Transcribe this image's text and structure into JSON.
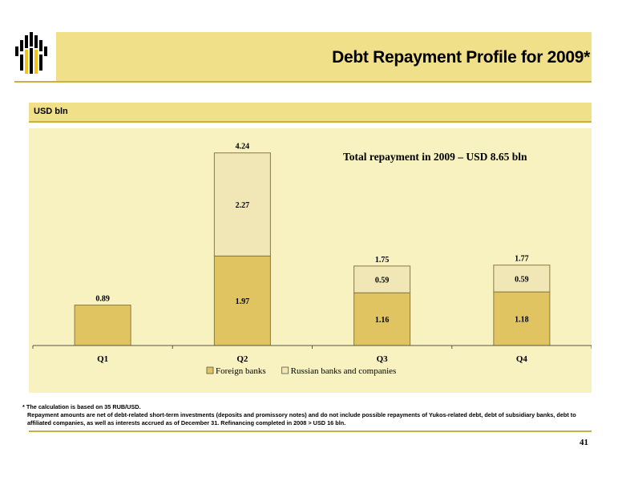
{
  "header": {
    "title": "Debt Repayment Profile for 2009*",
    "unit_label": "USD bln"
  },
  "colors": {
    "band": "#f0e08a",
    "panel": "#f7f2c0",
    "foreign": "#e0c462",
    "russian": "#f0e6b6",
    "logo_yellow": "#f2c21a"
  },
  "chart_data": {
    "type": "bar",
    "stacked": true,
    "title": "Total repayment in 2009 – USD 8.65 bln",
    "categories": [
      "Q1",
      "Q2",
      "Q3",
      "Q4"
    ],
    "series": [
      {
        "name": "Foreign banks",
        "values": [
          0.89,
          1.97,
          1.16,
          1.18
        ],
        "labels": [
          "",
          "1.97",
          "1.16",
          "1.18"
        ]
      },
      {
        "name": "Russian banks and companies",
        "values": [
          0,
          2.27,
          0.59,
          0.59
        ],
        "labels": [
          "",
          "2.27",
          "0.59",
          "0.59"
        ]
      }
    ],
    "totals": [
      0.89,
      4.24,
      1.75,
      1.77
    ],
    "total_labels": [
      "0.89",
      "4.24",
      "1.75",
      "1.77"
    ],
    "ylim": [
      0,
      4.5
    ],
    "legend": "bottom",
    "grid": false
  },
  "footnote": {
    "line1": "* The calculation is based on 35 RUB/USD.",
    "line2": "Repayment amounts are net of debt-related short-term investments (deposits and promissory notes) and do not include possible repayments of Yukos-related debt, debt of subsidiary banks, debt to affiliated companies, as well as interests accrued as of December 31. Refinancing completed in 2008 > USD 16 bln."
  },
  "page_number": "41"
}
